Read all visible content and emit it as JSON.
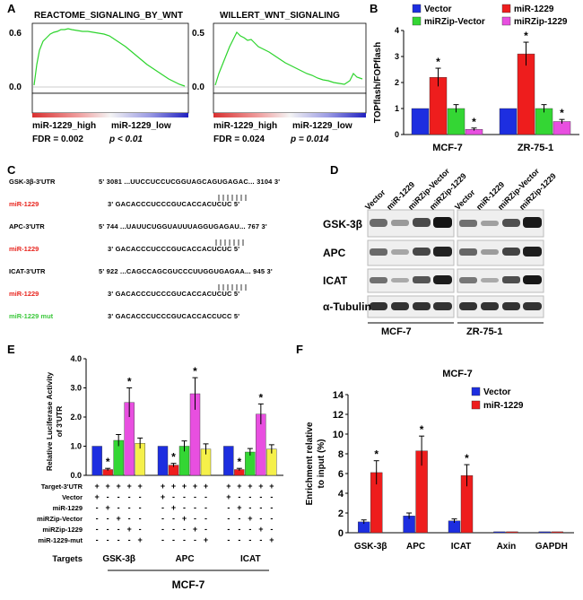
{
  "panels": {
    "A": "A",
    "B": "B",
    "C": "C",
    "D": "D",
    "E": "E",
    "F": "F"
  },
  "panelA": {
    "left": {
      "title": "REACTOME_SIGNALING_BY_WNT",
      "ymax": "0.6",
      "ymin": "0.0",
      "high": "miR-1229_high",
      "low": "miR-1229_low",
      "fdr": "FDR = 0.002",
      "p": "p < 0.01"
    },
    "right": {
      "title": "WILLERT_WNT_SIGNALING",
      "ymax": "0.5",
      "ymin": "0.0",
      "high": "miR-1229_high",
      "low": "miR-1229_low",
      "fdr": "FDR = 0.024",
      "p": "p = 0.014"
    }
  },
  "panelC": {
    "rows": [
      {
        "label": "GSK-3β-3'UTR",
        "seq": "5' 3081 ...UUCCUCCUCGGUAGCAGUGAGAC... 3104 3'",
        "color": "#000000"
      },
      {
        "label": "miR-1229",
        "seq": "3' GACACCCUCCCGUCACCACUCUC 5'",
        "color": "#e8261f"
      },
      {
        "label": "APC-3'UTR",
        "seq": "5' 744 ...UAUUCUGGUAUUUAGGUGAGAU... 767 3'",
        "color": "#000000"
      },
      {
        "label": "miR-1229",
        "seq": "3' GACACCCUCCCGUCACCACUCUC 5'",
        "color": "#e8261f"
      },
      {
        "label": "ICAT-3'UTR",
        "seq": "5' 922 ...CAGCCAGCGUCCCUUGGUGAGAA... 945 3'",
        "color": "#000000"
      },
      {
        "label": "miR-1229",
        "seq": "3' GACACCCUCCCGUCACCACUCUC 5'",
        "color": "#e8261f"
      },
      {
        "label": "miR-1229 mut",
        "seq": "3' GACACCCUCCCGUCACCACCUCC 5'",
        "color": "#3cc83c"
      }
    ]
  },
  "panelD": {
    "lanes": [
      "Vector",
      "miR-1229",
      "miRZip-Vector",
      "miRZip-1229",
      "Vector",
      "miR-1229",
      "miRZip-Vector",
      "miRZip-1229"
    ],
    "proteins": [
      "GSK-3β",
      "APC",
      "ICAT",
      "α-Tubulin"
    ],
    "cells": [
      "MCF-7",
      "ZR-75-1"
    ]
  },
  "chart_data": [
    {
      "id": "B",
      "type": "bar",
      "ylabel": "TOPflash/FOPflash",
      "ylim": [
        0,
        4
      ],
      "categories": [
        "MCF-7",
        "ZR-75-1"
      ],
      "series": [
        {
          "name": "Vector",
          "color": "#1d2ee0",
          "values": [
            1.0,
            1.0
          ],
          "errors": [
            0,
            0
          ]
        },
        {
          "name": "miR-1229",
          "color": "#ee1d1d",
          "values": [
            2.2,
            3.1
          ],
          "errors": [
            0.35,
            0.45
          ]
        },
        {
          "name": "miRZip-Vector",
          "color": "#34d634",
          "values": [
            1.0,
            1.0
          ],
          "errors": [
            0.15,
            0.15
          ]
        },
        {
          "name": "miRZip-1229",
          "color": "#e84fe0",
          "values": [
            0.2,
            0.5
          ],
          "errors": [
            0.05,
            0.08
          ]
        }
      ],
      "significance": [
        [
          false,
          true,
          false,
          true
        ],
        [
          false,
          true,
          false,
          true
        ]
      ],
      "star": "*"
    },
    {
      "id": "E",
      "type": "bar",
      "ylabel": "Relative Luciferase Activity of 3'UTR",
      "ylim": [
        0,
        4
      ],
      "yticks": [
        "0.0",
        "1.0",
        "2.0",
        "3.0",
        "4.0"
      ],
      "categories": [
        "GSK-3β",
        "APC",
        "ICAT"
      ],
      "groupLabel": "MCF-7",
      "targetsLabel": "Targets",
      "series": [
        {
          "name": "Vector",
          "color": "#1d2ee0",
          "values": [
            1.0,
            1.0,
            1.0
          ],
          "errors": [
            0,
            0,
            0
          ]
        },
        {
          "name": "miR-1229",
          "color": "#ee1d1d",
          "values": [
            0.2,
            0.35,
            0.2
          ],
          "errors": [
            0.04,
            0.06,
            0.04
          ]
        },
        {
          "name": "miRZip-Vector",
          "color": "#34d634",
          "values": [
            1.2,
            1.0,
            0.8
          ],
          "errors": [
            0.2,
            0.18,
            0.12
          ]
        },
        {
          "name": "miRZip-1229",
          "color": "#e84fe0",
          "values": [
            2.5,
            2.8,
            2.1
          ],
          "errors": [
            0.5,
            0.55,
            0.35
          ]
        },
        {
          "name": "miR-1229-mut",
          "color": "#f5f04a",
          "values": [
            1.1,
            0.9,
            0.9
          ],
          "errors": [
            0.18,
            0.18,
            0.15
          ]
        }
      ],
      "significance": [
        [
          false,
          true,
          false,
          true,
          false
        ],
        [
          false,
          true,
          false,
          true,
          false
        ],
        [
          false,
          true,
          false,
          true,
          false
        ]
      ],
      "star": "*",
      "tableRows": [
        {
          "label": "Target-3'UTR",
          "signs": [
            "+",
            "+",
            "+",
            "+",
            "+"
          ]
        },
        {
          "label": "Vector",
          "signs": [
            "+",
            "-",
            "-",
            "-",
            "-"
          ]
        },
        {
          "label": "miR-1229",
          "signs": [
            "-",
            "+",
            "-",
            "-",
            "-"
          ]
        },
        {
          "label": "miRZip-Vector",
          "signs": [
            "-",
            "-",
            "+",
            "-",
            "-"
          ]
        },
        {
          "label": "miRZip-1229",
          "signs": [
            "-",
            "-",
            "-",
            "+",
            "-"
          ]
        },
        {
          "label": "miR-1229-mut",
          "signs": [
            "-",
            "-",
            "-",
            "-",
            "+"
          ]
        }
      ]
    },
    {
      "id": "F",
      "type": "bar",
      "title": "MCF-7",
      "ylabel": "Enrichment relative to input (%)",
      "ylim": [
        0,
        14
      ],
      "yticks": [
        "0",
        "2",
        "4",
        "6",
        "8",
        "10",
        "12",
        "14"
      ],
      "categories": [
        "GSK-3β",
        "APC",
        "ICAT",
        "Axin",
        "GAPDH"
      ],
      "series": [
        {
          "name": "Vector",
          "color": "#1d2ee0",
          "values": [
            1.1,
            1.7,
            1.2,
            0.1,
            0.1
          ],
          "errors": [
            0.2,
            0.3,
            0.2,
            0,
            0
          ]
        },
        {
          "name": "miR-1229",
          "color": "#ee1d1d",
          "values": [
            6.1,
            8.3,
            5.8,
            0.1,
            0.1
          ],
          "errors": [
            1.2,
            1.5,
            1.1,
            0,
            0
          ]
        }
      ],
      "significance": [
        [
          false,
          true
        ],
        [
          false,
          true
        ],
        [
          false,
          true
        ],
        [
          false,
          false
        ],
        [
          false,
          false
        ]
      ],
      "star": "*"
    }
  ]
}
